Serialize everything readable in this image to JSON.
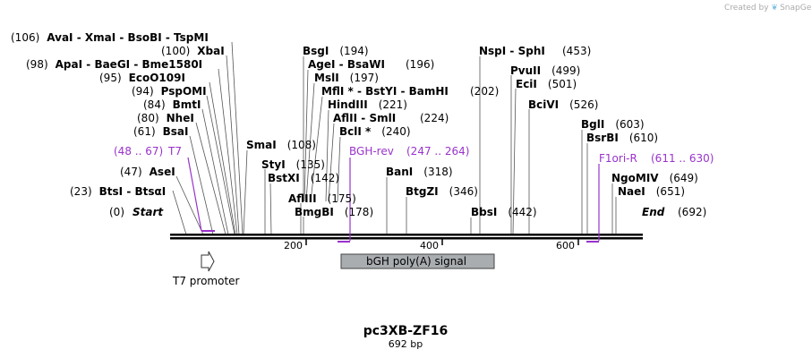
{
  "credit": {
    "created_by": "Created by",
    "brand": "SnapGene"
  },
  "plasmid": {
    "name": "pc3XB-ZF16",
    "length_label": "692 bp",
    "length": 692
  },
  "axis": {
    "ticks": [
      200,
      400,
      600
    ]
  },
  "colors": {
    "primer": "#9933cc",
    "feature_fill": "#a9adb0",
    "backbone": "#000000"
  },
  "start_label": {
    "pos": "(0)",
    "name": "Start"
  },
  "end_label": {
    "name": "End",
    "pos": "(692)"
  },
  "sites": [
    {
      "pos": "(106)",
      "names": [
        "AvaI",
        "XmaI",
        "BsoBI",
        "TspMI"
      ]
    },
    {
      "pos": "(100)",
      "names": [
        "XbaI"
      ]
    },
    {
      "pos": "(98)",
      "names": [
        "ApaI",
        "BaeGI",
        "Bme1580I"
      ]
    },
    {
      "pos": "(95)",
      "names": [
        "EcoO109I"
      ]
    },
    {
      "pos": "(94)",
      "names": [
        "PspOMI"
      ]
    },
    {
      "pos": "(84)",
      "names": [
        "BmtI"
      ]
    },
    {
      "pos": "(80)",
      "names": [
        "NheI"
      ]
    },
    {
      "pos": "(61)",
      "names": [
        "BsaI"
      ]
    },
    {
      "pos": "(47)",
      "names": [
        "AseI"
      ]
    },
    {
      "pos": "(23)",
      "names": [
        "BtsI",
        "BtsαI"
      ]
    },
    {
      "pos": "(108)",
      "names": [
        "SmaI"
      ]
    },
    {
      "pos": "(135)",
      "names": [
        "StyI"
      ]
    },
    {
      "pos": "(142)",
      "names": [
        "BstXI"
      ]
    },
    {
      "pos": "(175)",
      "names": [
        "AflIII"
      ]
    },
    {
      "pos": "(178)",
      "names": [
        "BmgBI"
      ]
    },
    {
      "pos": "(194)",
      "names": [
        "BsgI"
      ]
    },
    {
      "pos": "(196)",
      "names": [
        "AgeI",
        "BsaWI"
      ]
    },
    {
      "pos": "(197)",
      "names": [
        "MslI"
      ]
    },
    {
      "pos": "(202)",
      "names": [
        "MflI *",
        "BstYI",
        "BamHI"
      ]
    },
    {
      "pos": "(221)",
      "names": [
        "HindIII"
      ]
    },
    {
      "pos": "(224)",
      "names": [
        "AflII",
        "SmlI"
      ]
    },
    {
      "pos": "(240)",
      "names": [
        "BclI *"
      ]
    },
    {
      "pos": "(318)",
      "names": [
        "BanI"
      ]
    },
    {
      "pos": "(346)",
      "names": [
        "BtgZI"
      ]
    },
    {
      "pos": "(442)",
      "names": [
        "BbsI"
      ]
    },
    {
      "pos": "(453)",
      "names": [
        "NspI",
        "SphI"
      ]
    },
    {
      "pos": "(499)",
      "names": [
        "PvuII"
      ]
    },
    {
      "pos": "(501)",
      "names": [
        "EciI"
      ]
    },
    {
      "pos": "(526)",
      "names": [
        "BciVI"
      ]
    },
    {
      "pos": "(603)",
      "names": [
        "BglI"
      ]
    },
    {
      "pos": "(610)",
      "names": [
        "BsrBI"
      ]
    },
    {
      "pos": "(649)",
      "names": [
        "NgoMIV"
      ]
    },
    {
      "pos": "(651)",
      "names": [
        "NaeI"
      ]
    }
  ],
  "primers": [
    {
      "range": "(48 .. 67)",
      "name": "T7",
      "start": 48,
      "end": 67
    },
    {
      "name": "BGH-rev",
      "range": "(247 .. 264)",
      "start": 247,
      "end": 264
    },
    {
      "name": "F1ori-R",
      "range": "(611 .. 630)",
      "start": 611,
      "end": 630
    }
  ],
  "features": [
    {
      "name": "T7 promoter"
    },
    {
      "name": "bGH poly(A) signal"
    }
  ]
}
